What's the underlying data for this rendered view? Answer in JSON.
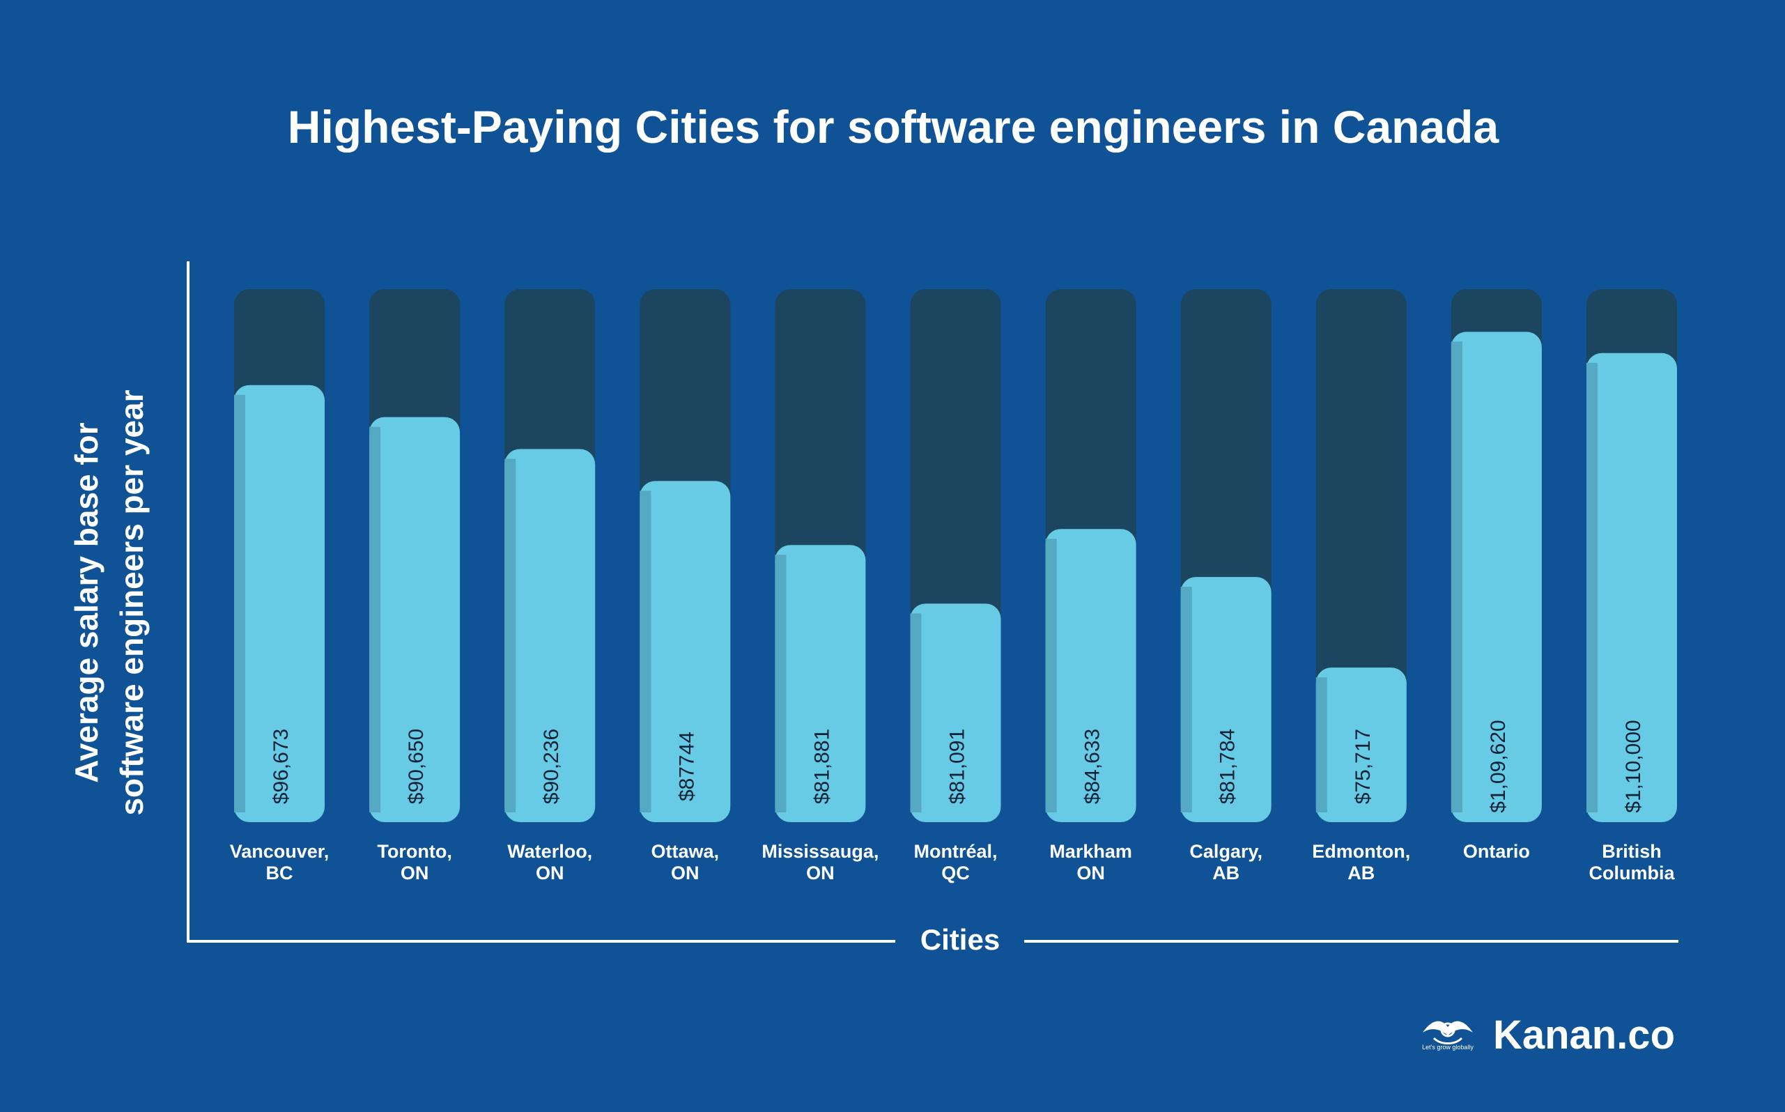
{
  "chart_data": {
    "type": "bar",
    "title": "Highest-Paying Cities for software engineers in Canada",
    "ylabel_line1": "Average salary base for",
    "ylabel_line2": "software engineers per year",
    "xlabel": "Cities",
    "categories": [
      [
        "Vancouver,",
        "BC"
      ],
      [
        "Toronto,",
        "ON"
      ],
      [
        "Waterloo,",
        "ON"
      ],
      [
        "Ottawa,",
        "ON"
      ],
      [
        "Mississauga,",
        "ON"
      ],
      [
        "Montréal,",
        "QC"
      ],
      [
        "Markham",
        "ON"
      ],
      [
        "Calgary,",
        "AB"
      ],
      [
        "Edmonton,",
        "AB"
      ],
      [
        "Ontario"
      ],
      [
        "British",
        "Columbia"
      ]
    ],
    "value_labels": [
      "$96,673",
      "$90,650",
      "$90,236",
      "$87744",
      "$81,881",
      "$81,091",
      "$84,633",
      "$81,784",
      "$75,717",
      "$1,09,620",
      "$1,10,000"
    ],
    "values": [
      96673,
      90650,
      90236,
      87744,
      81881,
      81091,
      84633,
      81784,
      75717,
      109620,
      110000
    ],
    "fill_fraction": [
      0.82,
      0.76,
      0.7,
      0.64,
      0.52,
      0.41,
      0.55,
      0.46,
      0.29,
      0.92,
      0.88
    ],
    "colors": {
      "background": "#0f5296",
      "bar_track": "#1c4660",
      "bar_fill": "#68cbe6",
      "bar_fill_edge": "#55a9c2",
      "text": "#ffffff",
      "value_text": "#0d2236"
    }
  },
  "brand": {
    "name": "Kanan.co",
    "tagline": "Let's grow globally"
  }
}
